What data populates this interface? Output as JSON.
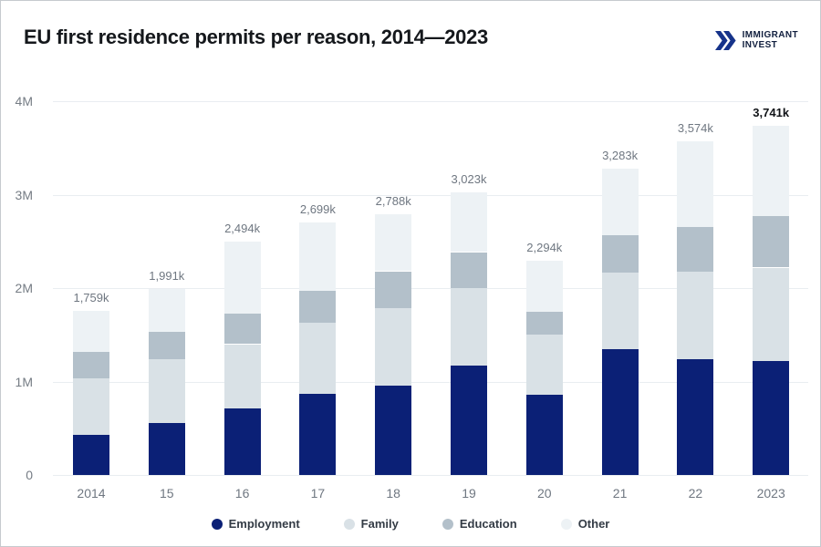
{
  "header": {
    "title": "EU first residence permits per reason, 2014—2023",
    "logo": {
      "line1": "IMMIGRANT",
      "line2": "INVEST",
      "mark_color": "#16338a",
      "text_color": "#111f3e"
    }
  },
  "chart_data": {
    "type": "bar",
    "variant": "stacked",
    "title": "EU first residence permits per reason, 2014—2023",
    "unit_note": "segment values in thousands of permits (k), estimated from bar heights",
    "categories": [
      "2014",
      "15",
      "16",
      "17",
      "18",
      "19",
      "20",
      "21",
      "22",
      "2023"
    ],
    "series": [
      {
        "name": "Employment",
        "color": "#0b2076",
        "values_k": [
          430,
          555,
          710,
          870,
          955,
          1170,
          860,
          1345,
          1235,
          1225
        ]
      },
      {
        "name": "Family",
        "color": "#d9e1e6",
        "values_k": [
          605,
          680,
          690,
          755,
          835,
          830,
          645,
          820,
          945,
          995
        ]
      },
      {
        "name": "Education",
        "color": "#b3c0ca",
        "values_k": [
          285,
          295,
          325,
          350,
          390,
          385,
          240,
          400,
          470,
          550
        ]
      },
      {
        "name": "Other",
        "color": "#edf2f5",
        "values_k": [
          439,
          461,
          769,
          724,
          608,
          638,
          549,
          718,
          924,
          971
        ]
      }
    ],
    "totals_k": [
      1759,
      1991,
      2494,
      2699,
      2788,
      3023,
      2294,
      3283,
      3574,
      3741
    ],
    "total_labels": [
      "1,759k",
      "1,991k",
      "2,494k",
      "2,699k",
      "2,788k",
      "3,023k",
      "2,294k",
      "3,283k",
      "3,574k",
      "3,741k"
    ],
    "highlighted_total_index": 9,
    "y_axis": {
      "tick_labels": [
        "0",
        "1M",
        "2M",
        "3M",
        "4M"
      ],
      "max_value": 4000000,
      "gridlines": true
    },
    "legend": {
      "position": "bottom",
      "items": [
        "Employment",
        "Family",
        "Education",
        "Other"
      ]
    }
  }
}
